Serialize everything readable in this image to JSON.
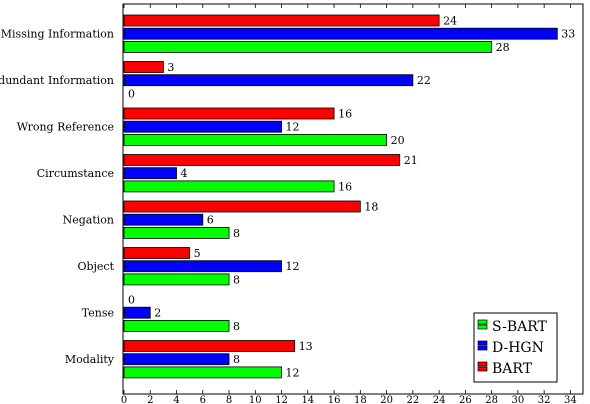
{
  "chart_data": {
    "type": "bar",
    "orientation": "horizontal",
    "categories": [
      "Missing Information",
      "Redundant Information",
      "Wrong Reference",
      "Circumstance",
      "Negation",
      "Object",
      "Tense",
      "Modality"
    ],
    "series": [
      {
        "name": "BART",
        "color": "#ff0000",
        "values": [
          24,
          3,
          16,
          21,
          18,
          5,
          0,
          13
        ]
      },
      {
        "name": "D-HGN",
        "color": "#0000ff",
        "values": [
          33,
          22,
          12,
          4,
          6,
          12,
          2,
          8
        ]
      },
      {
        "name": "S-BART",
        "color": "#00ff00",
        "values": [
          28,
          0,
          20,
          16,
          8,
          8,
          8,
          12
        ]
      }
    ],
    "x_ticks": [
      0,
      2,
      4,
      6,
      8,
      10,
      12,
      14,
      16,
      18,
      20,
      22,
      24,
      26,
      28,
      30,
      32,
      34
    ],
    "xlim": [
      0,
      35
    ],
    "legend_order": [
      "S-BART",
      "D-HGN",
      "BART"
    ],
    "legend_position": "bottom-right",
    "grid": false
  }
}
